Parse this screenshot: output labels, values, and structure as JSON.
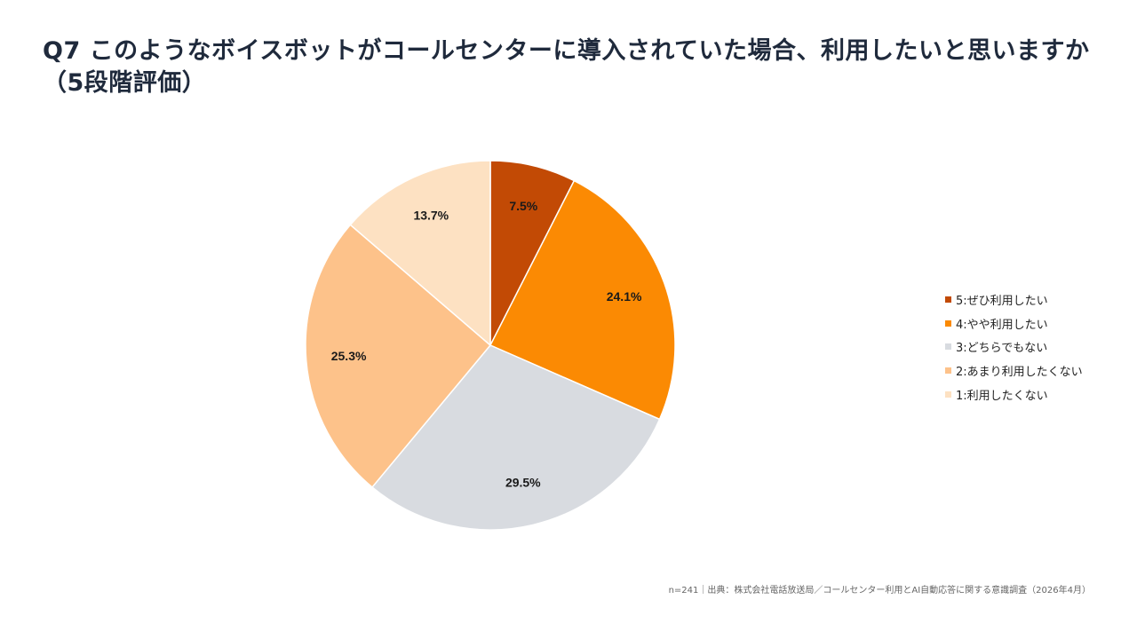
{
  "title": "Q7 このようなボイスボットがコールセンターに導入されていた場合、利用したいと思いますか（5段階評価）",
  "source": "n=241｜出典：株式会社電話放送局／コールセンター利用とAI自動応答に関する意識調査（2026年4月）",
  "chart_data": {
    "type": "pie",
    "title": "Q7 このようなボイスボットがコールセンターに導入されていた場合、利用したいと思いますか（5段階評価）",
    "categories": [
      "5:ぜひ利用したい",
      "4:やや利用したい",
      "3:どちらでもない",
      "2:あまり利用したくない",
      "1:利用したくない"
    ],
    "values": [
      7.5,
      24.1,
      29.5,
      25.3,
      13.7
    ],
    "data_labels": [
      "7.5%",
      "24.1%",
      "29.5%",
      "25.3%",
      "13.7%"
    ],
    "colors": [
      "#c24a05",
      "#fb8a03",
      "#d8dbe0",
      "#fdc28a",
      "#fde1c2"
    ],
    "start": "12 o'clock",
    "direction": "clockwise",
    "legend_position": "right"
  }
}
